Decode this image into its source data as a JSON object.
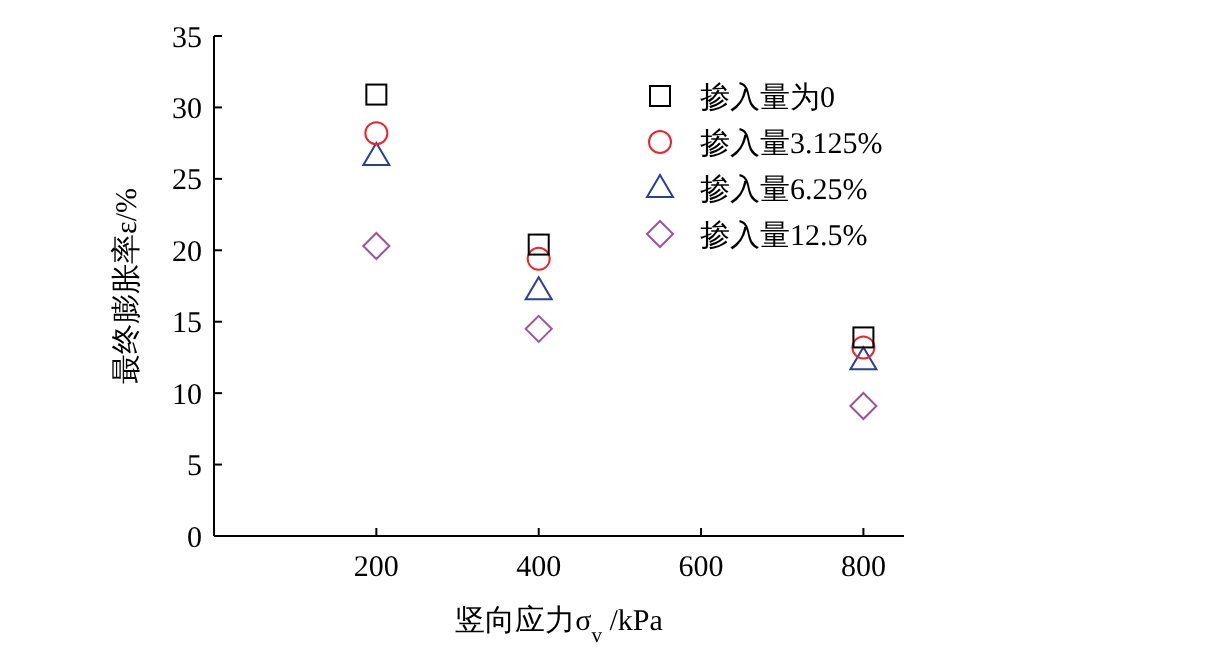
{
  "chart_data": {
    "type": "scatter",
    "xlabel": "竖向应力σ$_{v}$ /kPa",
    "ylabel": "最终膨胀率ε/%",
    "x": [
      200,
      400,
      800
    ],
    "xlim": [
      0,
      850
    ],
    "xticks": [
      200,
      400,
      600,
      800
    ],
    "ylim": [
      0,
      35
    ],
    "yticks": [
      0,
      5,
      10,
      15,
      20,
      25,
      30,
      35
    ],
    "legend": "top right",
    "grid": false,
    "series": [
      {
        "name": "掺入量为0",
        "color": "#000000",
        "marker": "square",
        "values": [
          30.9,
          20.4,
          13.9
        ]
      },
      {
        "name": "掺入量3.125%",
        "color": "#e8282e",
        "marker": "circle",
        "values": [
          28.2,
          19.4,
          13.2
        ]
      },
      {
        "name": "掺入量6.25%",
        "color": "#2b3f94",
        "marker": "triangle",
        "values": [
          26.6,
          17.2,
          12.3
        ]
      },
      {
        "name": "掺入量12.5%",
        "color": "#a0529e",
        "marker": "diamond",
        "values": [
          20.3,
          14.5,
          9.1
        ]
      }
    ]
  }
}
